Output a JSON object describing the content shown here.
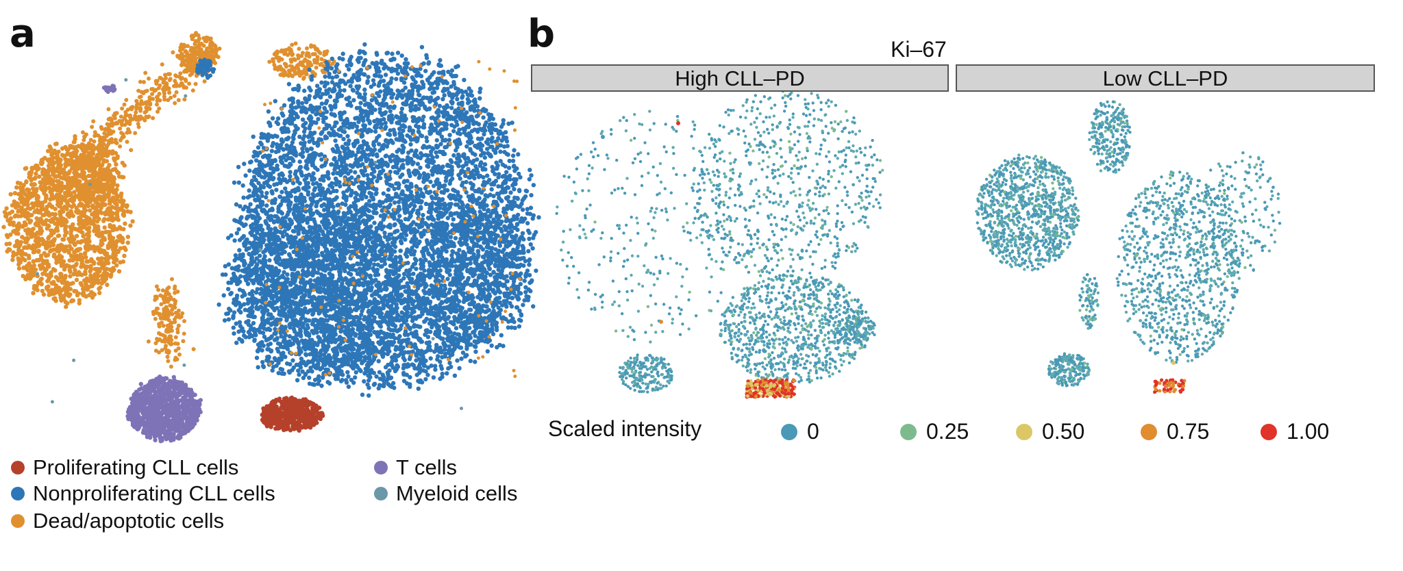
{
  "panel_a": {
    "letter": "a",
    "legend": [
      {
        "label": "Proliferating CLL cells",
        "color": "#b5412b"
      },
      {
        "label": "Nonproliferating CLL cells",
        "color": "#2d76b8"
      },
      {
        "label": "Dead/apoptotic cells",
        "color": "#e0902f"
      },
      {
        "label": "T cells",
        "color": "#7e73b6"
      },
      {
        "label": "Myeloid cells",
        "color": "#6b98a8"
      }
    ]
  },
  "panel_b": {
    "letter": "b",
    "title": "Ki–67",
    "facets": [
      "High CLL–PD",
      "Low CLL–PD"
    ],
    "legend_title": "Scaled intensity",
    "legend": [
      {
        "label": "0",
        "color": "#4a99b6"
      },
      {
        "label": "0.25",
        "color": "#7dbb8e"
      },
      {
        "label": "0.50",
        "color": "#dcc766"
      },
      {
        "label": "0.75",
        "color": "#e08c2f"
      },
      {
        "label": "1.00",
        "color": "#e0332a"
      }
    ]
  },
  "chart_data": [
    {
      "type": "scatter",
      "title": "",
      "xlabel": "",
      "ylabel": "",
      "grid": false,
      "legend_position": "bottom",
      "series": [
        {
          "name": "Proliferating CLL cells",
          "relative_abundance": "small"
        },
        {
          "name": "Nonproliferating CLL cells",
          "relative_abundance": "large"
        },
        {
          "name": "Dead/apoptotic cells",
          "relative_abundance": "medium"
        },
        {
          "name": "T cells",
          "relative_abundance": "small"
        },
        {
          "name": "Myeloid cells",
          "relative_abundance": "very small"
        }
      ]
    },
    {
      "type": "scatter",
      "title": "Ki–67",
      "facets": [
        "High CLL–PD",
        "Low CLL–PD"
      ],
      "color_scale": {
        "name": "Scaled intensity",
        "breaks": [
          0,
          0.25,
          0.5,
          0.75,
          1.0
        ]
      },
      "grid": false,
      "legend_position": "bottom"
    }
  ]
}
